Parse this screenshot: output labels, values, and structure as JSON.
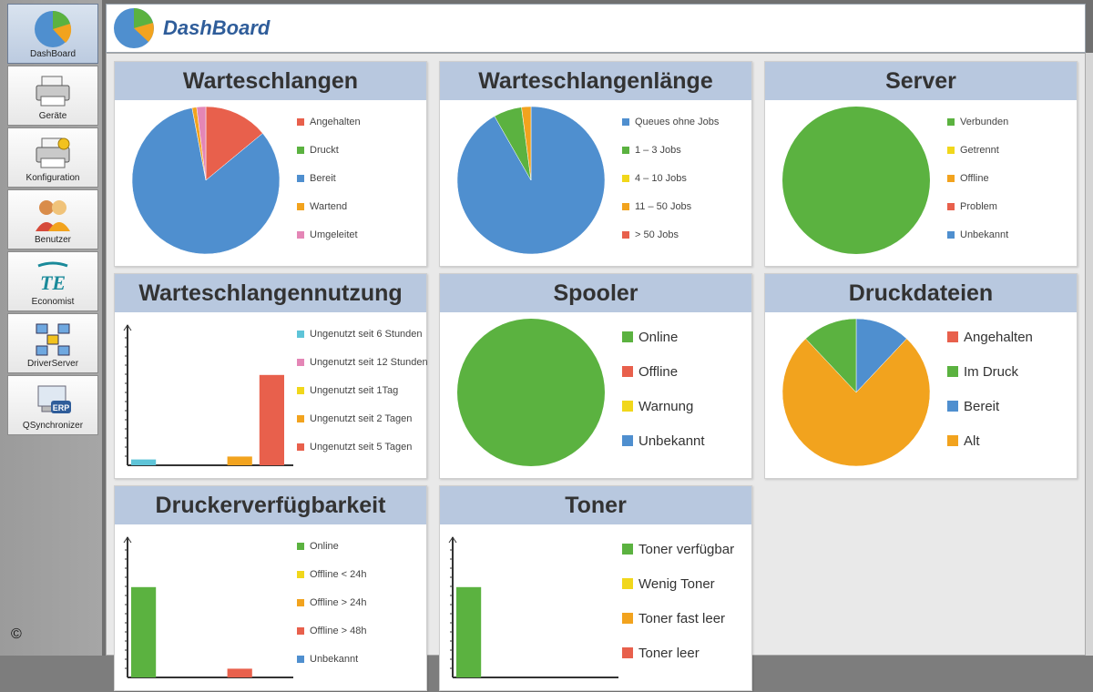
{
  "header": {
    "title": "DashBoard"
  },
  "sidebar": {
    "items": [
      {
        "label": "DashBoard",
        "icon": "dashboard-pie-icon",
        "active": true
      },
      {
        "label": "Geräte",
        "icon": "printer-icon"
      },
      {
        "label": "Konfiguration",
        "icon": "printer-config-icon"
      },
      {
        "label": "Benutzer",
        "icon": "users-icon"
      },
      {
        "label": "Economist",
        "icon": "economist-logo-icon"
      },
      {
        "label": "DriverServer",
        "icon": "network-icon"
      },
      {
        "label": "QSynchronizer",
        "icon": "erp-sync-icon"
      }
    ],
    "copyright": "©"
  },
  "panels": [
    {
      "title": "Warteschlangen",
      "chart_data": {
        "type": "pie",
        "slices": [
          {
            "name": "Angehalten",
            "value": 14,
            "color": "#e8604c"
          },
          {
            "name": "Druckt",
            "value": 0,
            "color": "#5bb240"
          },
          {
            "name": "Bereit",
            "value": 83,
            "color": "#4f8fcf"
          },
          {
            "name": "Wartend",
            "value": 1,
            "color": "#f2a31e"
          },
          {
            "name": "Umgeleitet",
            "value": 2,
            "color": "#e486b6"
          }
        ]
      }
    },
    {
      "title": "Warteschlangenlänge",
      "chart_data": {
        "type": "pie",
        "slices": [
          {
            "name": "Queues ohne Jobs",
            "value": 89,
            "color": "#4f8fcf"
          },
          {
            "name": "1 – 3 Jobs",
            "value": 6,
            "color": "#5bb240"
          },
          {
            "name": "4 – 10 Jobs",
            "value": 0,
            "color": "#f1d71b"
          },
          {
            "name": "11 – 50 Jobs",
            "value": 2,
            "color": "#f2a31e"
          },
          {
            "name": "> 50 Jobs",
            "value": 0,
            "color": "#e8604c"
          }
        ]
      }
    },
    {
      "title": "Server",
      "chart_data": {
        "type": "pie",
        "slices": [
          {
            "name": "Verbunden",
            "value": 100,
            "color": "#5bb240"
          },
          {
            "name": "Getrennt",
            "value": 0,
            "color": "#f1d71b"
          },
          {
            "name": "Offline",
            "value": 0,
            "color": "#f2a31e"
          },
          {
            "name": "Problem",
            "value": 0,
            "color": "#e8604c"
          },
          {
            "name": "Unbekannt",
            "value": 0,
            "color": "#4f8fcf"
          }
        ]
      }
    },
    {
      "title": "Warteschlangennutzung",
      "chart_data": {
        "type": "bar",
        "categories": [
          "Ungenutzt seit 6 Stunden",
          "Ungenutzt seit 12 Stunden",
          "Ungenutzt seit 1Tag",
          "Ungenutzt seit 2 Tagen",
          "Ungenutzt seit 5 Tagen"
        ],
        "values": [
          4,
          0,
          0,
          6,
          62
        ],
        "colors": [
          "#5ec4d8",
          "#e486b6",
          "#f1d71b",
          "#f2a31e",
          "#e8604c"
        ],
        "ylim": [
          0,
          90
        ]
      }
    },
    {
      "title": "Spooler",
      "legend_large": true,
      "chart_data": {
        "type": "pie",
        "slices": [
          {
            "name": "Online",
            "value": 100,
            "color": "#5bb240"
          },
          {
            "name": "Offline",
            "value": 0,
            "color": "#e8604c"
          },
          {
            "name": "Warnung",
            "value": 0,
            "color": "#f1d71b"
          },
          {
            "name": "Unbekannt",
            "value": 0,
            "color": "#4f8fcf"
          }
        ]
      }
    },
    {
      "title": "Druckdateien",
      "legend_large": true,
      "chart_data": {
        "type": "pie",
        "slices": [
          {
            "name": "Angehalten",
            "value": 0,
            "color": "#e8604c"
          },
          {
            "name": "Im Druck",
            "value": 12,
            "color": "#5bb240"
          },
          {
            "name": "Bereit",
            "value": 12,
            "color": "#4f8fcf"
          },
          {
            "name": "Alt",
            "value": 76,
            "color": "#f2a31e"
          }
        ],
        "start_index": 2
      }
    },
    {
      "title": "Druckerverfügbarkeit",
      "chart_data": {
        "type": "bar",
        "categories": [
          "Online",
          "Offline < 24h",
          "Offline > 24h",
          "Offline > 48h",
          "Unbekannt"
        ],
        "values": [
          62,
          0,
          0,
          6,
          0
        ],
        "colors": [
          "#5bb240",
          "#f1d71b",
          "#f2a31e",
          "#e8604c",
          "#4f8fcf"
        ],
        "ylim": [
          0,
          90
        ]
      }
    },
    {
      "title": "Toner",
      "legend_large": true,
      "chart_data": {
        "type": "bar",
        "categories": [
          "Toner verfügbar",
          "Wenig Toner",
          "Toner fast leer",
          "Toner leer"
        ],
        "values": [
          62,
          0,
          0,
          0
        ],
        "colors": [
          "#5bb240",
          "#f1d71b",
          "#f2a31e",
          "#e8604c"
        ],
        "ylim": [
          0,
          90
        ]
      }
    }
  ]
}
